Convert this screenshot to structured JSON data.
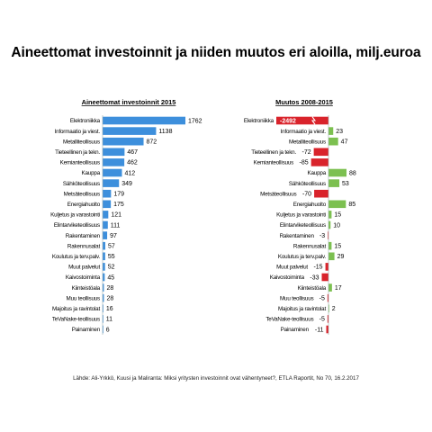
{
  "title": "Aineettomat investoinnit ja niiden muutos eri aloilla, milj.euroa",
  "source": "Lähde: Ali-Yrkkö, Kuusi ja Maliranta: Miksi yritysten investoinnit ovat vähentyneet?, ETLA Raportit, No 70, 16.2.2017",
  "colors": {
    "left_bar": "#3d8fdc",
    "positive": "#7cc050",
    "negative": "#d9232b",
    "label_dark": "#000000"
  },
  "chart_data": [
    {
      "type": "bar",
      "orientation": "horizontal",
      "title": "Aineettomat investoinnit 2015",
      "categories": [
        "Elektroniikka",
        "Informaatio ja viest.",
        "Metalliteollisuus",
        "Tieteellinen ja tekn.",
        "Kemianteollisuus",
        "Kauppa",
        "Sähköteollisuus",
        "Metsäteollisuus",
        "Energiahuolto",
        "Kuljetus ja varastointi",
        "Elintarviketeollisuus",
        "Rakentaminen",
        "Rakennusalat",
        "Koulutus ja terv.palv.",
        "Muut palvelut",
        "Kaivostoiminta",
        "Kiinteistöala",
        "Muu teollisuus",
        "Majoitus ja ravintolat",
        "TeVaNake-teollisuus",
        "Painaminen"
      ],
      "values": [
        1762,
        1138,
        872,
        467,
        462,
        412,
        349,
        179,
        175,
        121,
        111,
        97,
        57,
        55,
        52,
        45,
        28,
        28,
        16,
        11,
        6
      ],
      "value_labels": [
        "1762",
        "1138",
        "872",
        "467",
        "462",
        "412",
        "349",
        "179",
        "175",
        "121",
        "111",
        "97",
        "57",
        "55",
        "52",
        "45",
        "28",
        "28",
        "16",
        "11",
        "6"
      ]
    },
    {
      "type": "bar",
      "orientation": "horizontal",
      "title": "Muutos 2008-2015",
      "categories": [
        "Elektroniikka",
        "Informaatio ja viest.",
        "Metalliteollisuus",
        "Tieteellinen ja tekn.",
        "Kemianteollisuus",
        "Kauppa",
        "Sähköteollisuus",
        "Metsäteollisuus",
        "Energiahuolto",
        "Kuljetus ja varastointi",
        "Elintarviketeollisuus",
        "Rakentaminen",
        "Rakennusalat",
        "Koulutus ja terv.palv.",
        "Muut palvelut",
        "Kaivostoiminta",
        "Kiinteistöala",
        "Muu teollisuus",
        "Majoitus ja ravintolat",
        "TeVaNake-teollisuus",
        "Painaminen"
      ],
      "values": [
        -2492,
        23,
        47,
        -72,
        -85,
        88,
        53,
        -70,
        85,
        15,
        10,
        -3,
        15,
        29,
        -15,
        -33,
        17,
        -5,
        2,
        -5,
        -11
      ],
      "value_labels": [
        "-2492",
        "23",
        "47",
        "-72",
        "-85",
        "88",
        "53",
        "-70",
        "85",
        "15",
        "10",
        "-3",
        "15",
        "29",
        "-15",
        "-33",
        "17",
        "-5",
        "2",
        "-5",
        "-11"
      ],
      "broken_bar": "Elektroniikka"
    }
  ]
}
